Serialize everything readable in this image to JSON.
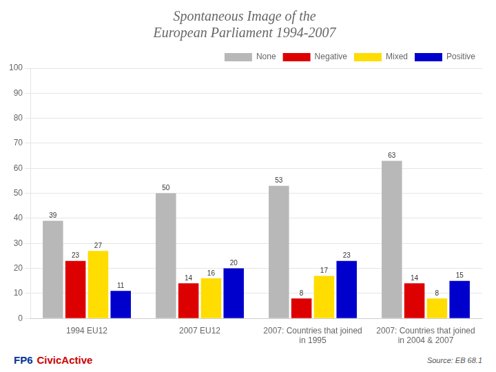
{
  "chart_data": {
    "type": "bar",
    "title": [
      "Spontaneous Image of the",
      "European Parliament 1994-2007"
    ],
    "categories": [
      "1994 EU12",
      "2007 EU12",
      "2007: Countries that joined\nin 1995",
      "2007: Countries that joined\nin 2004 & 2007"
    ],
    "series": [
      {
        "name": "None",
        "color": "#b8b8b8",
        "values": [
          39,
          50,
          53,
          63
        ]
      },
      {
        "name": "Negative",
        "color": "#dd0000",
        "values": [
          23,
          14,
          8,
          14
        ]
      },
      {
        "name": "Mixed",
        "color": "#ffdd00",
        "values": [
          27,
          16,
          17,
          8
        ]
      },
      {
        "name": "Positive",
        "color": "#0000cc",
        "values": [
          11,
          20,
          23,
          15
        ]
      }
    ],
    "ylim": [
      0,
      100
    ],
    "yticks": [
      0,
      10,
      20,
      30,
      40,
      50,
      60,
      70,
      80,
      90,
      100
    ],
    "grid": true,
    "legend": "upper right",
    "data_labels": true,
    "annotations": [
      {
        "text": "FP6",
        "color": "#003399",
        "kind": "brand"
      },
      {
        "text": "CivicActive",
        "color": "#cc0000",
        "kind": "brand"
      },
      {
        "text": "Source: EB 68.1",
        "kind": "note"
      }
    ]
  }
}
